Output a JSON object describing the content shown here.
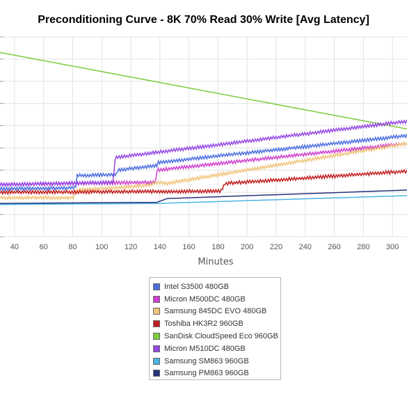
{
  "chart_data": {
    "type": "line",
    "title": "Preconditioning Curve - 8K 70% Read 30% Write [Avg Latency]",
    "xlabel": "Minutes",
    "ylabel": "",
    "x_ticks": [
      40,
      60,
      80,
      100,
      120,
      140,
      160,
      180,
      200,
      220,
      240,
      260,
      280,
      300
    ],
    "xlim": [
      30,
      310
    ],
    "ylim": [
      0,
      9
    ],
    "grid": true,
    "legend_position": "bottom-center",
    "series": [
      {
        "name": "Intel S3500 480GB",
        "color": "#4a6ee0",
        "style": "noisy",
        "points": [
          [
            30,
            2.15
          ],
          [
            82,
            2.2
          ],
          [
            83,
            2.75
          ],
          [
            110,
            2.8
          ],
          [
            111,
            3.0
          ],
          [
            138,
            3.2
          ],
          [
            139,
            3.35
          ],
          [
            310,
            4.55
          ]
        ]
      },
      {
        "name": "Micron M500DC 480GB",
        "color": "#cf3fcf",
        "style": "noisy",
        "points": [
          [
            30,
            2.35
          ],
          [
            137,
            2.45
          ],
          [
            138,
            3.0
          ],
          [
            310,
            4.2
          ]
        ]
      },
      {
        "name": "Samsung 845DC EVO 480GB",
        "color": "#f0c47a",
        "style": "noisy",
        "points": [
          [
            30,
            1.75
          ],
          [
            80,
            1.75
          ],
          [
            83,
            2.1
          ],
          [
            130,
            2.3
          ],
          [
            140,
            2.45
          ],
          [
            145,
            2.4
          ],
          [
            310,
            4.2
          ]
        ]
      },
      {
        "name": "Toshiba HK3R2 960GB",
        "color": "#c21f1f",
        "style": "noisy",
        "points": [
          [
            30,
            2.0
          ],
          [
            182,
            2.05
          ],
          [
            185,
            2.4
          ],
          [
            310,
            2.95
          ]
        ]
      },
      {
        "name": "SanDisk CloudSpeed Eco 960GB",
        "color": "#7ccc3c",
        "style": "line",
        "points": [
          [
            30,
            8.3
          ],
          [
            310,
            4.85
          ]
        ]
      },
      {
        "name": "Micron M510DC 480GB",
        "color": "#9547e3",
        "style": "noisy",
        "points": [
          [
            30,
            2.35
          ],
          [
            108,
            2.45
          ],
          [
            109,
            3.55
          ],
          [
            138,
            3.8
          ],
          [
            310,
            5.2
          ]
        ]
      },
      {
        "name": "Samsung SM863 960GB",
        "color": "#4ab4e3",
        "style": "line",
        "points": [
          [
            30,
            1.45
          ],
          [
            140,
            1.5
          ],
          [
            310,
            1.85
          ]
        ]
      },
      {
        "name": "Samsung PM863 960GB",
        "color": "#26327a",
        "style": "line",
        "points": [
          [
            30,
            1.5
          ],
          [
            138,
            1.55
          ],
          [
            145,
            1.72
          ],
          [
            310,
            2.1
          ]
        ]
      }
    ]
  }
}
